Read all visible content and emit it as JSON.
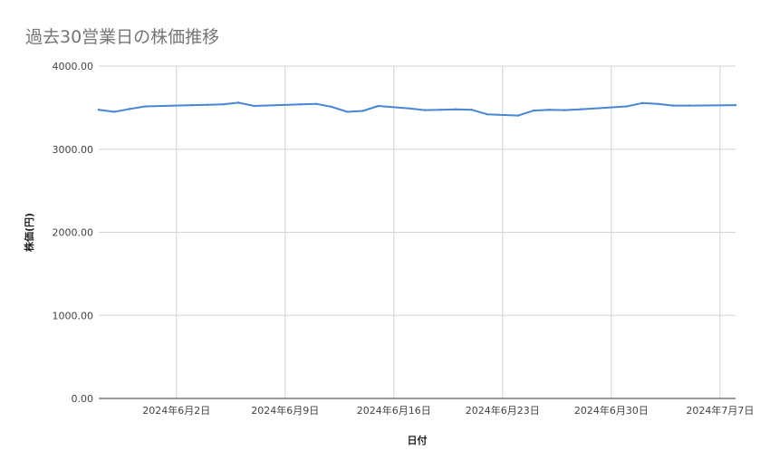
{
  "chart_data": {
    "type": "line",
    "title": "過去30営業日の株価推移",
    "xlabel": "日付",
    "ylabel": "株価(円)",
    "ylim": [
      0,
      4000
    ],
    "y_ticks": [
      "0.00",
      "1000.00",
      "2000.00",
      "3000.00",
      "4000.00"
    ],
    "x_ticks": [
      {
        "date": "2024-06-02",
        "label": "2024年6月2日"
      },
      {
        "date": "2024-06-09",
        "label": "2024年6月9日"
      },
      {
        "date": "2024-06-16",
        "label": "2024年6月16日"
      },
      {
        "date": "2024-06-23",
        "label": "2024年6月23日"
      },
      {
        "date": "2024-06-30",
        "label": "2024年6月30日"
      },
      {
        "date": "2024-07-07",
        "label": "2024年7月7日"
      }
    ],
    "x_range": [
      "2024-05-28",
      "2024-07-08"
    ],
    "grid": true,
    "series": [
      {
        "color": "#4a86d6",
        "points": [
          {
            "x": "2024-05-28",
            "y": 3475
          },
          {
            "x": "2024-05-29",
            "y": 3450
          },
          {
            "x": "2024-05-30",
            "y": 3485
          },
          {
            "x": "2024-05-31",
            "y": 3515
          },
          {
            "x": "2024-06-03",
            "y": 3530
          },
          {
            "x": "2024-06-04",
            "y": 3535
          },
          {
            "x": "2024-06-05",
            "y": 3540
          },
          {
            "x": "2024-06-06",
            "y": 3560
          },
          {
            "x": "2024-06-07",
            "y": 3520
          },
          {
            "x": "2024-06-10",
            "y": 3540
          },
          {
            "x": "2024-06-11",
            "y": 3545
          },
          {
            "x": "2024-06-12",
            "y": 3510
          },
          {
            "x": "2024-06-13",
            "y": 3450
          },
          {
            "x": "2024-06-14",
            "y": 3460
          },
          {
            "x": "2024-06-15",
            "y": 3520
          },
          {
            "x": "2024-06-17",
            "y": 3490
          },
          {
            "x": "2024-06-18",
            "y": 3470
          },
          {
            "x": "2024-06-19",
            "y": 3475
          },
          {
            "x": "2024-06-20",
            "y": 3480
          },
          {
            "x": "2024-06-21",
            "y": 3475
          },
          {
            "x": "2024-06-22",
            "y": 3420
          },
          {
            "x": "2024-06-24",
            "y": 3405
          },
          {
            "x": "2024-06-25",
            "y": 3465
          },
          {
            "x": "2024-06-26",
            "y": 3475
          },
          {
            "x": "2024-06-27",
            "y": 3470
          },
          {
            "x": "2024-06-28",
            "y": 3480
          },
          {
            "x": "2024-07-01",
            "y": 3515
          },
          {
            "x": "2024-07-02",
            "y": 3555
          },
          {
            "x": "2024-07-03",
            "y": 3545
          },
          {
            "x": "2024-07-04",
            "y": 3525
          },
          {
            "x": "2024-07-05",
            "y": 3525
          },
          {
            "x": "2024-07-08",
            "y": 3530
          }
        ]
      }
    ]
  }
}
